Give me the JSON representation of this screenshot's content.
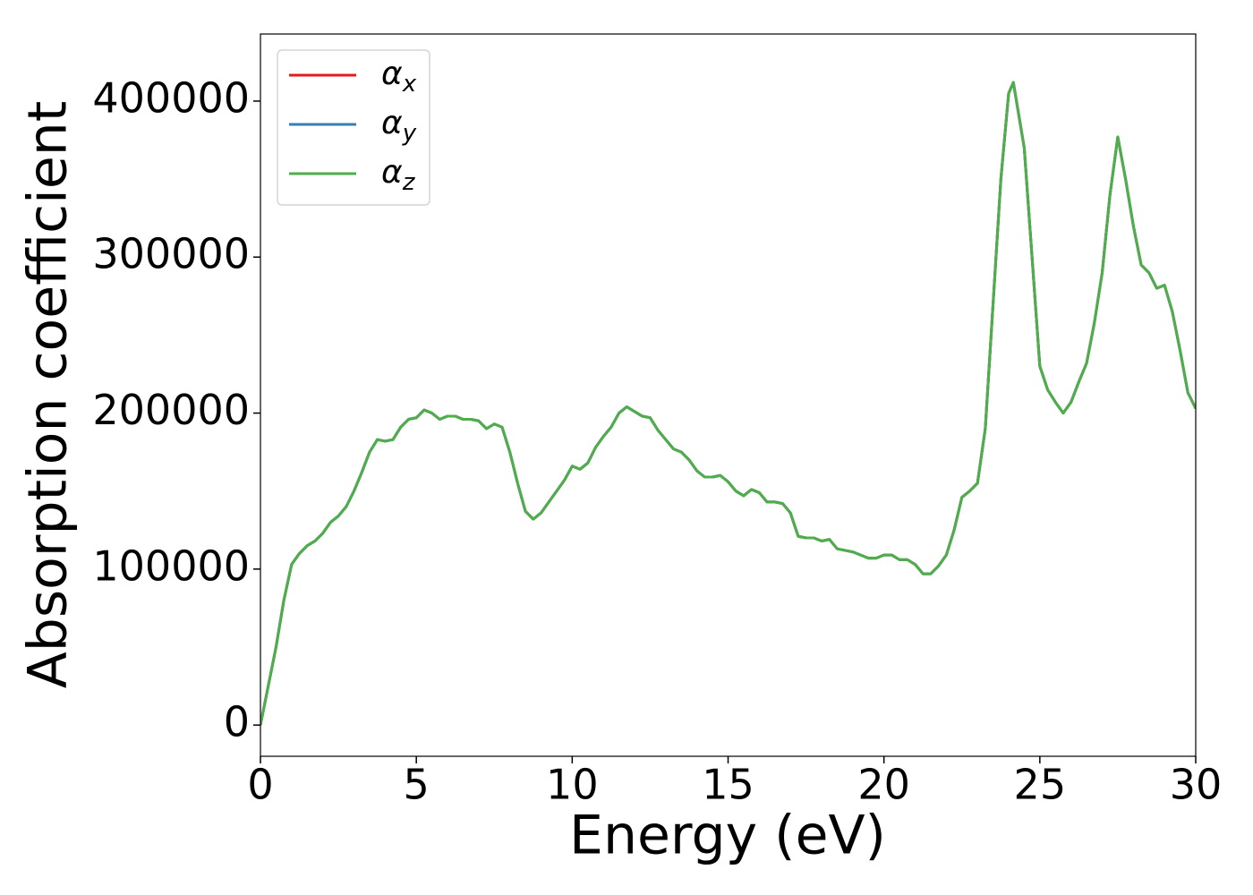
{
  "chart_data": {
    "type": "line",
    "xlabel": "Energy (eV)",
    "ylabel": "Absorption coefficient",
    "x": [
      0,
      0.25,
      0.5,
      0.75,
      1,
      1.25,
      1.5,
      1.75,
      2,
      2.25,
      2.5,
      2.75,
      3,
      3.25,
      3.5,
      3.75,
      4,
      4.25,
      4.5,
      4.75,
      5,
      5.25,
      5.5,
      5.75,
      6,
      6.25,
      6.5,
      6.75,
      7,
      7.25,
      7.5,
      7.75,
      8,
      8.25,
      8.5,
      8.75,
      9,
      9.25,
      9.5,
      9.75,
      10,
      10.25,
      10.5,
      10.75,
      11,
      11.25,
      11.5,
      11.75,
      12,
      12.25,
      12.5,
      12.75,
      13,
      13.25,
      13.5,
      13.75,
      14,
      14.25,
      14.5,
      14.75,
      15,
      15.25,
      15.5,
      15.75,
      16,
      16.25,
      16.5,
      16.75,
      17,
      17.25,
      17.5,
      17.75,
      18,
      18.25,
      18.5,
      18.75,
      19,
      19.25,
      19.5,
      19.75,
      20,
      20.25,
      20.5,
      20.75,
      21,
      21.25,
      21.5,
      21.75,
      22,
      22.25,
      22.5,
      22.75,
      23,
      23.25,
      23.5,
      23.75,
      24,
      24.15,
      24.5,
      24.75,
      25,
      25.25,
      25.5,
      25.75,
      26,
      26.25,
      26.5,
      26.75,
      27,
      27.25,
      27.5,
      27.75,
      28,
      28.25,
      28.5,
      28.75,
      29,
      29.25,
      29.5,
      29.75,
      30
    ],
    "series": [
      {
        "name": "αx",
        "color": "#e41a1c",
        "values": [
          0,
          25000,
          50000,
          80000,
          103000,
          110000,
          115000,
          118000,
          123000,
          130000,
          134000,
          140000,
          150000,
          162000,
          175000,
          183000,
          182000,
          183000,
          191000,
          196000,
          197000,
          202000,
          200000,
          196000,
          198000,
          198000,
          196000,
          196000,
          195000,
          190000,
          193000,
          191000,
          175000,
          155000,
          137000,
          132000,
          136000,
          143000,
          150000,
          157000,
          166000,
          164000,
          168000,
          178000,
          185000,
          191000,
          200000,
          204000,
          201000,
          198000,
          197000,
          189000,
          183000,
          177000,
          175000,
          170000,
          163000,
          159000,
          159000,
          160000,
          156000,
          150000,
          147000,
          151000,
          149000,
          143000,
          143000,
          142000,
          136000,
          121000,
          120000,
          120000,
          118000,
          119000,
          113000,
          112000,
          111000,
          109000,
          107000,
          107000,
          109000,
          109000,
          106000,
          106000,
          103000,
          97000,
          97000,
          102000,
          109000,
          125000,
          146000,
          150000,
          155000,
          190000,
          270000,
          350000,
          405000,
          412000,
          370000,
          300000,
          230000,
          215000,
          207000,
          200000,
          207000,
          220000,
          232000,
          258000,
          290000,
          340000,
          377000,
          350000,
          320000,
          295000,
          290000,
          280000,
          282000,
          265000,
          240000,
          213000,
          203000
        ]
      },
      {
        "name": "αy",
        "color": "#377eb8",
        "values": [
          0,
          25000,
          50000,
          80000,
          103000,
          110000,
          115000,
          118000,
          123000,
          130000,
          134000,
          140000,
          150000,
          162000,
          175000,
          183000,
          182000,
          183000,
          191000,
          196000,
          197000,
          202000,
          200000,
          196000,
          198000,
          198000,
          196000,
          196000,
          195000,
          190000,
          193000,
          191000,
          175000,
          155000,
          137000,
          132000,
          136000,
          143000,
          150000,
          157000,
          166000,
          164000,
          168000,
          178000,
          185000,
          191000,
          200000,
          204000,
          201000,
          198000,
          197000,
          189000,
          183000,
          177000,
          175000,
          170000,
          163000,
          159000,
          159000,
          160000,
          156000,
          150000,
          147000,
          151000,
          149000,
          143000,
          143000,
          142000,
          136000,
          121000,
          120000,
          120000,
          118000,
          119000,
          113000,
          112000,
          111000,
          109000,
          107000,
          107000,
          109000,
          109000,
          106000,
          106000,
          103000,
          97000,
          97000,
          102000,
          109000,
          125000,
          146000,
          150000,
          155000,
          190000,
          270000,
          350000,
          405000,
          412000,
          370000,
          300000,
          230000,
          215000,
          207000,
          200000,
          207000,
          220000,
          232000,
          258000,
          290000,
          340000,
          377000,
          350000,
          320000,
          295000,
          290000,
          280000,
          282000,
          265000,
          240000,
          213000,
          203000
        ]
      },
      {
        "name": "αz",
        "color": "#4daf4a",
        "values": [
          0,
          25000,
          50000,
          80000,
          103000,
          110000,
          115000,
          118000,
          123000,
          130000,
          134000,
          140000,
          150000,
          162000,
          175000,
          183000,
          182000,
          183000,
          191000,
          196000,
          197000,
          202000,
          200000,
          196000,
          198000,
          198000,
          196000,
          196000,
          195000,
          190000,
          193000,
          191000,
          175000,
          155000,
          137000,
          132000,
          136000,
          143000,
          150000,
          157000,
          166000,
          164000,
          168000,
          178000,
          185000,
          191000,
          200000,
          204000,
          201000,
          198000,
          197000,
          189000,
          183000,
          177000,
          175000,
          170000,
          163000,
          159000,
          159000,
          160000,
          156000,
          150000,
          147000,
          151000,
          149000,
          143000,
          143000,
          142000,
          136000,
          121000,
          120000,
          120000,
          118000,
          119000,
          113000,
          112000,
          111000,
          109000,
          107000,
          107000,
          109000,
          109000,
          106000,
          106000,
          103000,
          97000,
          97000,
          102000,
          109000,
          125000,
          146000,
          150000,
          155000,
          190000,
          270000,
          350000,
          405000,
          412000,
          370000,
          300000,
          230000,
          215000,
          207000,
          200000,
          207000,
          220000,
          232000,
          258000,
          290000,
          340000,
          377000,
          350000,
          320000,
          295000,
          290000,
          280000,
          282000,
          265000,
          240000,
          213000,
          203000
        ]
      }
    ],
    "xlim": [
      0,
      30
    ],
    "xticks": [
      0,
      5,
      10,
      15,
      20,
      25,
      30
    ],
    "ylim": [
      -20000,
      443000
    ],
    "yticks": [
      0,
      100000,
      200000,
      300000,
      400000
    ],
    "grid": false,
    "legend": "upper left"
  }
}
